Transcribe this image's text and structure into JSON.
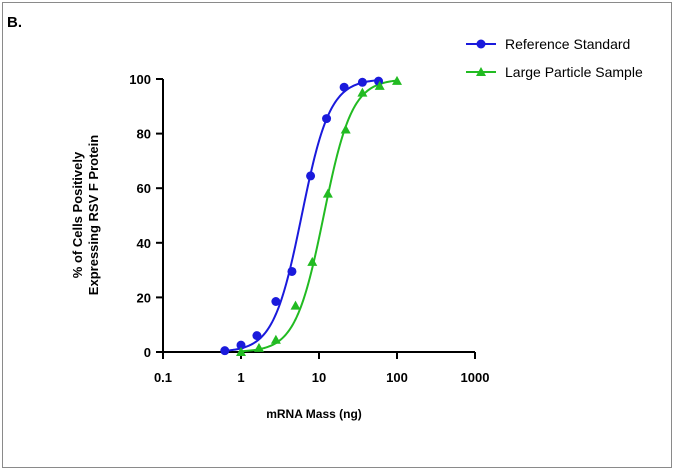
{
  "figure": {
    "panel_label": "B."
  },
  "chart_data": {
    "type": "scatter",
    "xlabel": "mRNA Mass (ng)",
    "ylabel_lines": [
      "% of Cells Positively",
      "Expressing RSV F Protein"
    ],
    "x_scale": "log",
    "xlim": [
      0.1,
      1000
    ],
    "ylim": [
      0,
      100
    ],
    "x_ticks": [
      0.1,
      1,
      10,
      100,
      1000
    ],
    "x_tick_labels": [
      "0.1",
      "1",
      "10",
      "100",
      "1000"
    ],
    "y_ticks": [
      0,
      20,
      40,
      60,
      80,
      100
    ],
    "y_tick_labels": [
      "0",
      "20",
      "40",
      "60",
      "80",
      "100"
    ],
    "grid": false,
    "legend_position": "top-right",
    "fit": "sigmoidal dose-response curve through each series",
    "series": [
      {
        "name": "Reference Standard",
        "color": "#1a1adc",
        "marker": "circle",
        "points": [
          {
            "x": 0.62,
            "y": 0.5
          },
          {
            "x": 1.0,
            "y": 2.5
          },
          {
            "x": 1.6,
            "y": 6
          },
          {
            "x": 2.8,
            "y": 18.5
          },
          {
            "x": 4.5,
            "y": 29.5
          },
          {
            "x": 7.8,
            "y": 64.5
          },
          {
            "x": 12.5,
            "y": 85.5
          },
          {
            "x": 21,
            "y": 97
          },
          {
            "x": 36,
            "y": 98.8
          },
          {
            "x": 58,
            "y": 99.2
          }
        ],
        "fit": {
          "bottom": 0,
          "top": 100,
          "ec50": 6.0,
          "hill": 2.4
        }
      },
      {
        "name": "Large Particle Sample",
        "color": "#22bb22",
        "marker": "triangle",
        "points": [
          {
            "x": 1.0,
            "y": 0
          },
          {
            "x": 1.7,
            "y": 1.5
          },
          {
            "x": 2.8,
            "y": 4.5
          },
          {
            "x": 5.0,
            "y": 17
          },
          {
            "x": 8.2,
            "y": 33
          },
          {
            "x": 13,
            "y": 58
          },
          {
            "x": 22,
            "y": 81.5
          },
          {
            "x": 36,
            "y": 95
          },
          {
            "x": 60,
            "y": 97.5
          },
          {
            "x": 100,
            "y": 99.3
          }
        ],
        "fit": {
          "bottom": 0,
          "top": 100,
          "ec50": 11.5,
          "hill": 2.4
        }
      }
    ]
  }
}
